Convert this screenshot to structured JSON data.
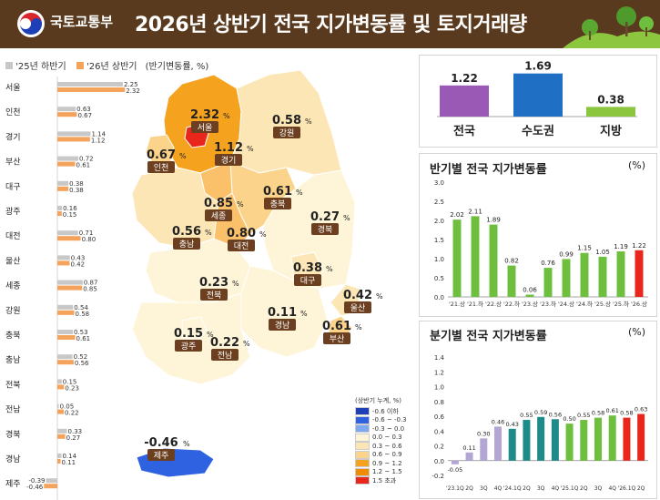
{
  "header": {
    "logo_text": "국토교통부",
    "title": "2026년 상반기 전국 지가변동률 및 토지거래량"
  },
  "left_legend": {
    "prev_label": "'25년 하반기",
    "curr_label": "'26년 상반기",
    "unit_note": "(반기변동률, %)",
    "prev_color": "#c8c8c8",
    "curr_color": "#f5a35a"
  },
  "region_bars": [
    {
      "name": "서울",
      "prev": 2.25,
      "curr": 2.32,
      "prev_text": "2.25",
      "curr_text": "2.32"
    },
    {
      "name": "인천",
      "prev": 0.63,
      "curr": 0.67,
      "prev_text": "0.63",
      "curr_text": "0.67"
    },
    {
      "name": "경기",
      "prev": 1.14,
      "curr": 1.12,
      "prev_text": "1.14",
      "curr_text": "1.12"
    },
    {
      "name": "부산",
      "prev": 0.72,
      "curr": 0.61,
      "prev_text": "0.72",
      "curr_text": "0.61"
    },
    {
      "name": "대구",
      "prev": 0.38,
      "curr": 0.38,
      "prev_text": "0.38",
      "curr_text": "0.38"
    },
    {
      "name": "광주",
      "prev": 0.16,
      "curr": 0.15,
      "prev_text": "0.16",
      "curr_text": "0.15"
    },
    {
      "name": "대전",
      "prev": 0.71,
      "curr": 0.8,
      "prev_text": "0.71",
      "curr_text": "0.80"
    },
    {
      "name": "울산",
      "prev": 0.43,
      "curr": 0.42,
      "prev_text": "0.43",
      "curr_text": "0.42"
    },
    {
      "name": "세종",
      "prev": 0.87,
      "curr": 0.85,
      "prev_text": "0.87",
      "curr_text": "0.85"
    },
    {
      "name": "강원",
      "prev": 0.54,
      "curr": 0.58,
      "prev_text": "0.54",
      "curr_text": "0.58"
    },
    {
      "name": "충북",
      "prev": 0.53,
      "curr": 0.61,
      "prev_text": "0.53",
      "curr_text": "0.61"
    },
    {
      "name": "충남",
      "prev": 0.52,
      "curr": 0.56,
      "prev_text": "0.52",
      "curr_text": "0.56"
    },
    {
      "name": "전북",
      "prev": 0.15,
      "curr": 0.23,
      "prev_text": "0.15",
      "curr_text": "0.23"
    },
    {
      "name": "전남",
      "prev": 0.05,
      "curr": 0.22,
      "prev_text": "0.05",
      "curr_text": "0.22"
    },
    {
      "name": "경북",
      "prev": 0.33,
      "curr": 0.27,
      "prev_text": "0.33",
      "curr_text": "0.27"
    },
    {
      "name": "경남",
      "prev": 0.14,
      "curr": 0.11,
      "prev_text": "0.14",
      "curr_text": "0.11"
    },
    {
      "name": "제주",
      "prev": -0.39,
      "curr": -0.46,
      "prev_text": "-0.39",
      "curr_text": "-0.46"
    }
  ],
  "map_labels": [
    {
      "name": "서울",
      "value": "2.32",
      "color": "#f08a00"
    },
    {
      "name": "인천",
      "value": "0.67",
      "color": "#fbd38a"
    },
    {
      "name": "경기",
      "value": "1.12",
      "color": "#f5a31f"
    },
    {
      "name": "강원",
      "value": "0.58",
      "color": "#fde6b5"
    },
    {
      "name": "충북",
      "value": "0.61",
      "color": "#fbd38a"
    },
    {
      "name": "세종",
      "value": "0.85",
      "color": "#fbc06a"
    },
    {
      "name": "충남",
      "value": "0.56",
      "color": "#fde6b5"
    },
    {
      "name": "대전",
      "value": "0.80",
      "color": "#fbc06a"
    },
    {
      "name": "경북",
      "value": "0.27",
      "color": "#fef5d8"
    },
    {
      "name": "대구",
      "value": "0.38",
      "color": "#fde6b5"
    },
    {
      "name": "전북",
      "value": "0.23",
      "color": "#fef5d8"
    },
    {
      "name": "경남",
      "value": "0.11",
      "color": "#fef5d8"
    },
    {
      "name": "울산",
      "value": "0.42",
      "color": "#fde6b5"
    },
    {
      "name": "부산",
      "value": "0.61",
      "color": "#fbd38a"
    },
    {
      "name": "광주",
      "value": "0.15",
      "color": "#fef5d8"
    },
    {
      "name": "전남",
      "value": "0.22",
      "color": "#fef5d8"
    },
    {
      "name": "제주",
      "value": "-0.46",
      "color": "#2f62e0"
    }
  ],
  "map_unit": "%",
  "map_legend": {
    "title": "(상반기 누계, %)",
    "items": [
      {
        "label": "-0.6 이하",
        "color": "#1d3fb8"
      },
      {
        "label": "-0.6 ~ -0.3",
        "color": "#2f62e0"
      },
      {
        "label": "-0.3 ~ 0.0",
        "color": "#7ea9ee"
      },
      {
        "label": "0.0 ~ 0.3",
        "color": "#fef5d8"
      },
      {
        "label": "0.3 ~ 0.6",
        "color": "#fde6b5"
      },
      {
        "label": "0.6 ~ 0.9",
        "color": "#fbd38a"
      },
      {
        "label": "0.9 ~ 1.2",
        "color": "#f5a31f"
      },
      {
        "label": "1.2 ~ 1.5",
        "color": "#f08a00"
      },
      {
        "label": "1.5 초과",
        "color": "#e8261c"
      }
    ]
  },
  "chart_data": [
    {
      "type": "bar",
      "categories": [
        "전국",
        "수도권",
        "지방"
      ],
      "values": [
        1.22,
        1.69,
        0.38
      ],
      "value_labels": [
        "1.22",
        "1.69",
        "0.38"
      ],
      "colors": [
        "#9b59b6",
        "#1f6fc5",
        "#8cc63f"
      ]
    },
    {
      "type": "bar",
      "title": "반기별 전국 지가변동률",
      "unit": "(%)",
      "categories": [
        "'21.상",
        "'21.하",
        "'22.상",
        "'22.하",
        "'23.상",
        "'23.하",
        "'24.상",
        "'24.하",
        "'25.상",
        "'25.하",
        "'26.상"
      ],
      "values": [
        2.02,
        2.11,
        1.89,
        0.82,
        0.06,
        0.76,
        0.99,
        1.15,
        1.05,
        1.19,
        1.22
      ],
      "value_labels": [
        "2.02",
        "2.11",
        "1.89",
        "0.82",
        "0.06",
        "0.76",
        "0.99",
        "1.15",
        "1.05",
        "1.19",
        "1.22"
      ],
      "ylim": [
        0,
        3.0
      ],
      "yticks": [
        "0.0",
        "0.5",
        "1.0",
        "1.5",
        "2.0",
        "2.5",
        "3.0"
      ],
      "bar_color": "#6fbf3f",
      "highlight_color": "#e8261c"
    },
    {
      "type": "bar",
      "title": "분기별 전국 지가변동률",
      "unit": "(%)",
      "categories": [
        "'23.1Q",
        "2Q",
        "3Q",
        "4Q",
        "'24.1Q",
        "2Q",
        "3Q",
        "4Q",
        "'25.1Q",
        "2Q",
        "3Q",
        "4Q",
        "'26.1Q",
        "2Q"
      ],
      "values": [
        -0.05,
        0.11,
        0.3,
        0.46,
        0.43,
        0.55,
        0.59,
        0.56,
        0.5,
        0.55,
        0.58,
        0.61,
        0.58,
        0.63
      ],
      "value_labels": [
        "-0.05",
        "0.11",
        "0.30",
        "0.46",
        "0.43",
        "0.55",
        "0.59",
        "0.56",
        "0.50",
        "0.55",
        "0.58",
        "0.61",
        "0.58",
        "0.63"
      ],
      "colors": [
        "#b3a6d4",
        "#b3a6d4",
        "#b3a6d4",
        "#b3a6d4",
        "#1e8a8a",
        "#1e8a8a",
        "#1e8a8a",
        "#1e8a8a",
        "#6fbf3f",
        "#6fbf3f",
        "#6fbf3f",
        "#6fbf3f",
        "#e8261c",
        "#e8261c"
      ],
      "ylim": [
        -0.2,
        1.4
      ],
      "yticks": [
        "-0.2",
        "0.0",
        "0.2",
        "0.4",
        "0.6",
        "0.8",
        "1.0",
        "1.2",
        "1.4"
      ]
    }
  ]
}
